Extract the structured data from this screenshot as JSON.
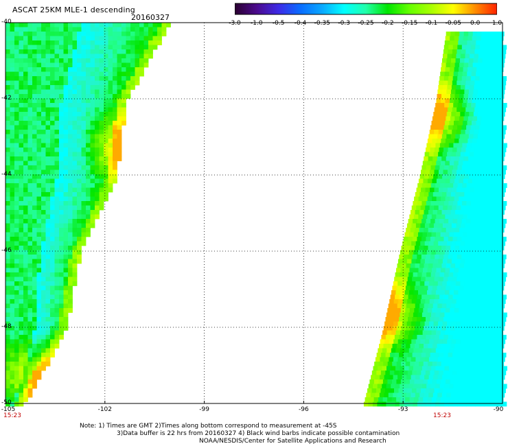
{
  "header": {
    "title": "ASCAT 25KM MLE-1 descending",
    "date": "20160327"
  },
  "colorbar": {
    "tick_labels": [
      "-3.0",
      "-1.0",
      "-0.5",
      "-0.4",
      "-0.35",
      "-0.3",
      "-0.25",
      "-0.2",
      "-0.15",
      "-0.1",
      "-0.05",
      "0.0",
      "1.0"
    ],
    "colors": [
      "#2a0030",
      "#4b0a8c",
      "#3d2ae6",
      "#0a6cff",
      "#0aa8ff",
      "#00ffff",
      "#22ffaa",
      "#00e600",
      "#66ff00",
      "#aaff00",
      "#ffff00",
      "#ff8c00",
      "#ff2200"
    ]
  },
  "map": {
    "lat_labels": [
      "-40",
      "-42",
      "-44",
      "-46",
      "-48",
      "-50"
    ],
    "lat_values": [
      -40,
      -42,
      -44,
      -46,
      -48,
      -50
    ],
    "lon_labels": [
      "-105",
      "-102",
      "-99",
      "-96",
      "-93",
      "-90"
    ],
    "lon_values": [
      -105,
      -102,
      -99,
      -96,
      -93,
      -90
    ],
    "lat_range": [
      -50,
      -40
    ],
    "lon_range": [
      -105,
      -90
    ],
    "grid": true,
    "swaths": [
      {
        "side": "west",
        "time": "15:23",
        "edge": [
          [
            -40,
            -100.1
          ],
          [
            -42,
            -101.4
          ],
          [
            -44,
            -101.7
          ],
          [
            -46,
            -102.8
          ],
          [
            -48,
            -103.2
          ],
          [
            -50,
            -104.5
          ]
        ],
        "bright_cores": [
          [
            -43.2,
            -101.6
          ],
          [
            -49.2,
            -104.3
          ]
        ]
      },
      {
        "side": "east",
        "time": "15:23",
        "edge": [
          [
            -40.2,
            -91.7
          ],
          [
            -42,
            -92.0
          ],
          [
            -44,
            -92.5
          ],
          [
            -46,
            -93.1
          ],
          [
            -48,
            -93.6
          ],
          [
            -50,
            -94.2
          ]
        ],
        "bright_cores": [
          [
            -42.4,
            -91.9
          ],
          [
            -47.6,
            -93.5
          ]
        ]
      }
    ]
  },
  "notes": [
    "Note: 1) Times are GMT 2)Times along bottom correspond to measurement at -45S",
    "3)Data buffer is 22 hrs from 20160327 4) Black wind barbs indicate possible contamination",
    "NOAA/NESDIS/Center for Satellite Applications and Research"
  ]
}
